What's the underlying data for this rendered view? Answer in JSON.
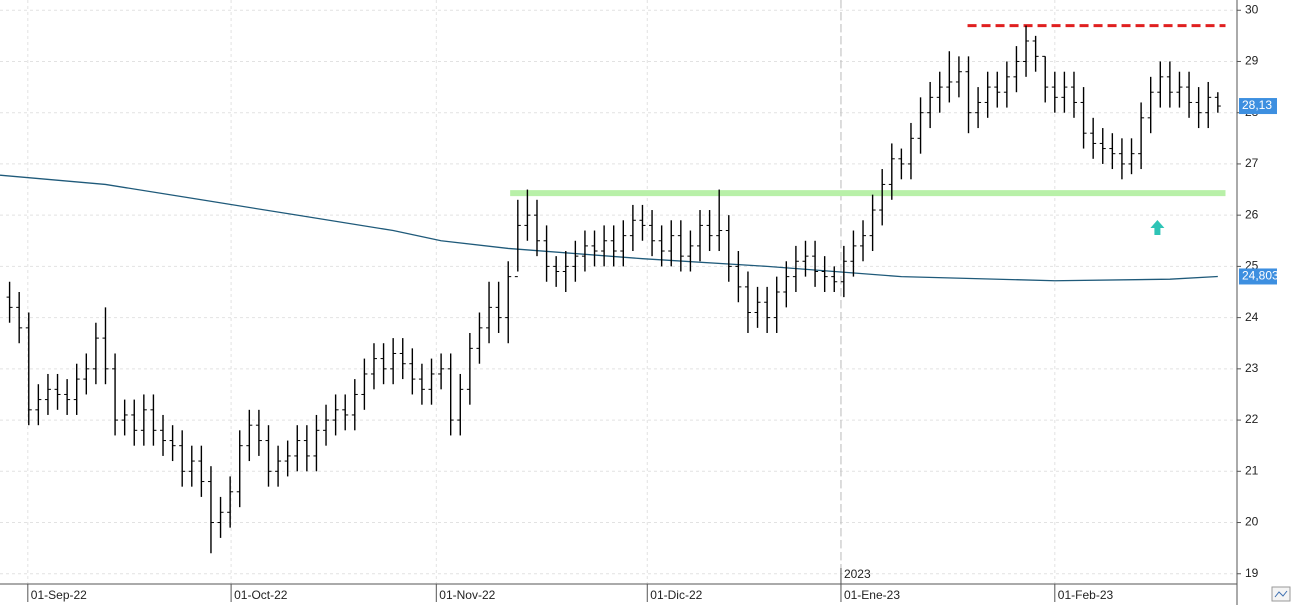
{
  "chart_data": {
    "type": "ohlc",
    "x": [
      0,
      1,
      2,
      3,
      4,
      5,
      6,
      7,
      8,
      9,
      10,
      11,
      12,
      13,
      14,
      15,
      16,
      17,
      18,
      19,
      20,
      21,
      22,
      23,
      24,
      25,
      26,
      27,
      28,
      29,
      30,
      31,
      32,
      33,
      34,
      35,
      36,
      37,
      38,
      39,
      40,
      41,
      42,
      43,
      44,
      45,
      46,
      47,
      48,
      49,
      50,
      51,
      52,
      53,
      54,
      55,
      56,
      57,
      58,
      59,
      60,
      61,
      62,
      63,
      64,
      65,
      66,
      67,
      68,
      69,
      70,
      71,
      72,
      73,
      74,
      75,
      76,
      77,
      78,
      79,
      80,
      81,
      82,
      83,
      84,
      85,
      86,
      87,
      88,
      89,
      90,
      91,
      92,
      93,
      94,
      95,
      96,
      97,
      98,
      99,
      100,
      101,
      102,
      103,
      104,
      105,
      106,
      107,
      108,
      109,
      110,
      111,
      112,
      113,
      114,
      115,
      116,
      117,
      118,
      119,
      120,
      121,
      122,
      123,
      124,
      125,
      126
    ],
    "open": [
      24.4,
      24.2,
      23.8,
      22.2,
      22.4,
      22.6,
      22.5,
      22.4,
      22.8,
      23.0,
      23.6,
      23.0,
      22.0,
      22.1,
      21.8,
      22.2,
      21.8,
      21.6,
      21.5,
      21.0,
      21.2,
      20.8,
      20.0,
      20.2,
      20.6,
      21.5,
      21.9,
      21.6,
      21.0,
      21.2,
      21.3,
      21.6,
      21.3,
      21.8,
      22.0,
      22.2,
      22.1,
      22.5,
      22.9,
      23.2,
      23.0,
      23.3,
      23.1,
      22.8,
      22.6,
      22.9,
      23.0,
      22.0,
      22.6,
      23.4,
      23.8,
      24.2,
      24.0,
      24.8,
      25.8,
      26.0,
      25.5,
      25.0,
      24.9,
      25.0,
      25.2,
      25.4,
      25.3,
      25.5,
      25.3,
      25.6,
      25.9,
      25.8,
      25.5,
      25.3,
      25.6,
      25.2,
      25.4,
      25.8,
      25.6,
      25.7,
      25.0,
      24.6,
      24.1,
      24.3,
      24.0,
      24.5,
      24.8,
      25.1,
      25.2,
      24.9,
      24.8,
      24.7,
      25.1,
      25.4,
      25.6,
      26.1,
      26.6,
      27.1,
      27.0,
      27.5,
      28.0,
      28.3,
      28.5,
      28.6,
      28.8,
      28.0,
      28.2,
      28.5,
      28.4,
      28.7,
      29.0,
      29.4,
      29.1,
      28.5,
      28.3,
      28.5,
      28.2,
      27.6,
      27.4,
      27.3,
      27.2,
      27.0,
      27.2,
      27.9,
      28.4,
      28.7,
      28.4,
      28.5,
      28.2,
      28.0,
      28.3
    ],
    "high": [
      24.7,
      24.5,
      24.1,
      22.7,
      22.9,
      22.9,
      22.8,
      23.1,
      23.3,
      23.9,
      24.2,
      23.3,
      22.4,
      22.4,
      22.5,
      22.5,
      22.1,
      21.9,
      21.8,
      21.5,
      21.5,
      21.1,
      20.5,
      20.9,
      21.8,
      22.2,
      22.2,
      21.9,
      21.5,
      21.6,
      21.9,
      21.9,
      22.1,
      22.3,
      22.5,
      22.5,
      22.8,
      23.2,
      23.5,
      23.5,
      23.6,
      23.6,
      23.4,
      23.1,
      23.2,
      23.3,
      23.3,
      22.9,
      23.7,
      24.1,
      24.7,
      24.7,
      25.1,
      26.3,
      26.5,
      26.3,
      25.8,
      25.2,
      25.3,
      25.5,
      25.7,
      25.7,
      25.8,
      25.8,
      25.9,
      26.2,
      26.2,
      26.1,
      25.8,
      25.9,
      25.9,
      25.7,
      26.1,
      26.1,
      26.5,
      26.0,
      25.3,
      24.9,
      24.6,
      24.6,
      24.8,
      25.1,
      25.4,
      25.5,
      25.5,
      25.2,
      25.0,
      25.4,
      25.7,
      25.9,
      26.4,
      26.9,
      27.4,
      27.3,
      27.8,
      28.3,
      28.6,
      28.8,
      29.2,
      29.1,
      29.1,
      28.5,
      28.8,
      28.8,
      29.0,
      29.3,
      29.7,
      29.5,
      29.1,
      28.8,
      28.8,
      28.8,
      28.5,
      27.9,
      27.7,
      27.6,
      27.5,
      27.5,
      28.2,
      28.7,
      29.0,
      29.0,
      28.8,
      28.8,
      28.5,
      28.6,
      28.4
    ],
    "low": [
      23.9,
      23.5,
      21.9,
      21.9,
      22.1,
      22.2,
      22.1,
      22.1,
      22.5,
      22.7,
      22.7,
      21.7,
      21.7,
      21.5,
      21.5,
      21.5,
      21.3,
      21.2,
      20.7,
      20.7,
      20.5,
      19.4,
      19.7,
      19.9,
      20.3,
      21.2,
      21.3,
      20.7,
      20.7,
      20.9,
      21.0,
      21.0,
      21.0,
      21.5,
      21.7,
      21.8,
      21.8,
      22.2,
      22.6,
      22.7,
      22.7,
      22.8,
      22.5,
      22.3,
      22.3,
      22.6,
      21.7,
      21.7,
      22.3,
      23.1,
      23.5,
      23.7,
      23.5,
      24.9,
      25.5,
      25.2,
      24.7,
      24.6,
      24.5,
      24.7,
      24.9,
      25.0,
      25.0,
      25.0,
      25.0,
      25.3,
      25.5,
      25.2,
      25.0,
      25.0,
      24.9,
      24.9,
      25.1,
      25.3,
      25.3,
      24.7,
      24.3,
      23.7,
      23.8,
      23.7,
      23.7,
      24.2,
      24.5,
      24.8,
      24.6,
      24.5,
      24.5,
      24.4,
      24.8,
      25.1,
      25.3,
      25.8,
      26.3,
      26.7,
      26.7,
      27.2,
      27.7,
      28.0,
      28.2,
      28.3,
      27.6,
      27.7,
      27.9,
      28.1,
      28.1,
      28.4,
      28.7,
      28.8,
      28.2,
      28.0,
      28.0,
      27.9,
      27.3,
      27.1,
      27.0,
      26.9,
      26.7,
      26.8,
      26.9,
      27.6,
      28.1,
      28.1,
      28.1,
      27.9,
      27.7,
      27.7,
      28.0
    ],
    "close": [
      24.2,
      23.8,
      22.2,
      22.4,
      22.6,
      22.5,
      22.4,
      22.8,
      23.0,
      23.6,
      23.0,
      22.0,
      22.1,
      21.8,
      22.2,
      21.8,
      21.6,
      21.5,
      21.0,
      21.2,
      20.8,
      20.0,
      20.2,
      20.6,
      21.5,
      21.9,
      21.6,
      21.0,
      21.2,
      21.3,
      21.6,
      21.3,
      21.8,
      22.0,
      22.2,
      22.1,
      22.5,
      22.9,
      23.2,
      23.0,
      23.3,
      23.1,
      22.8,
      22.6,
      22.9,
      23.0,
      22.0,
      22.6,
      23.4,
      23.8,
      24.2,
      24.0,
      24.8,
      25.8,
      26.0,
      25.5,
      25.0,
      24.9,
      25.0,
      25.2,
      25.4,
      25.3,
      25.5,
      25.3,
      25.6,
      25.9,
      25.8,
      25.5,
      25.3,
      25.6,
      25.2,
      25.4,
      25.8,
      25.6,
      25.7,
      25.0,
      24.6,
      24.1,
      24.3,
      24.0,
      24.5,
      24.8,
      25.1,
      25.2,
      24.9,
      24.8,
      24.7,
      25.1,
      25.4,
      25.6,
      26.1,
      26.6,
      27.1,
      27.0,
      27.5,
      28.0,
      28.3,
      28.5,
      28.6,
      28.8,
      28.0,
      28.2,
      28.5,
      28.4,
      28.7,
      29.0,
      29.4,
      29.1,
      28.5,
      28.3,
      28.5,
      28.2,
      27.6,
      27.4,
      27.3,
      27.2,
      27.0,
      27.2,
      27.9,
      28.4,
      28.7,
      28.4,
      28.5,
      28.2,
      28.0,
      28.3,
      28.13
    ],
    "bar_color": "#000000",
    "last_label": {
      "value": 28.13,
      "label": "28,13",
      "color": "#3d8fe0"
    },
    "average": {
      "x": [
        -1,
        10,
        20,
        30,
        40,
        45,
        52,
        66,
        79,
        93,
        109,
        121,
        126
      ],
      "values": [
        26.78,
        26.6,
        26.3,
        26.0,
        25.7,
        25.5,
        25.35,
        25.15,
        25.0,
        24.8,
        24.72,
        24.75,
        24.803
      ],
      "color": "#1f5a7a",
      "last_label": {
        "value": 24.803,
        "label": "24,803",
        "color": "#3d8fe0"
      }
    },
    "hlines": [
      {
        "value": 29.7,
        "x": [
          99.9,
          126.8
        ],
        "color": "#e02020",
        "dashed": true
      },
      {
        "value": 26.43,
        "x": [
          52.2,
          126.8
        ],
        "color": "#b8f0a8",
        "dashed": false
      }
    ],
    "arrow": {
      "x": 119.7,
      "y": 25.75,
      "color": "#2ec4b6"
    },
    "xlim": [
      -1,
      128
    ],
    "ylim": [
      18.8,
      30.2
    ],
    "xticks": [
      {
        "value": 1.9,
        "label": "01-Sep-22"
      },
      {
        "value": 23.1,
        "label": "01-Oct-22"
      },
      {
        "value": 44.5,
        "label": "01-Nov-22"
      },
      {
        "value": 66.5,
        "label": "01-Dic-22"
      },
      {
        "value": 86.7,
        "label": "01-Ene-23"
      },
      {
        "value": 109,
        "label": "01-Feb-23"
      }
    ],
    "year_mark": {
      "value": 86.7,
      "label": "2023"
    },
    "yticks": [
      19,
      20,
      21,
      22,
      23,
      24,
      25,
      26,
      27,
      28,
      29,
      30
    ],
    "grid": true
  }
}
